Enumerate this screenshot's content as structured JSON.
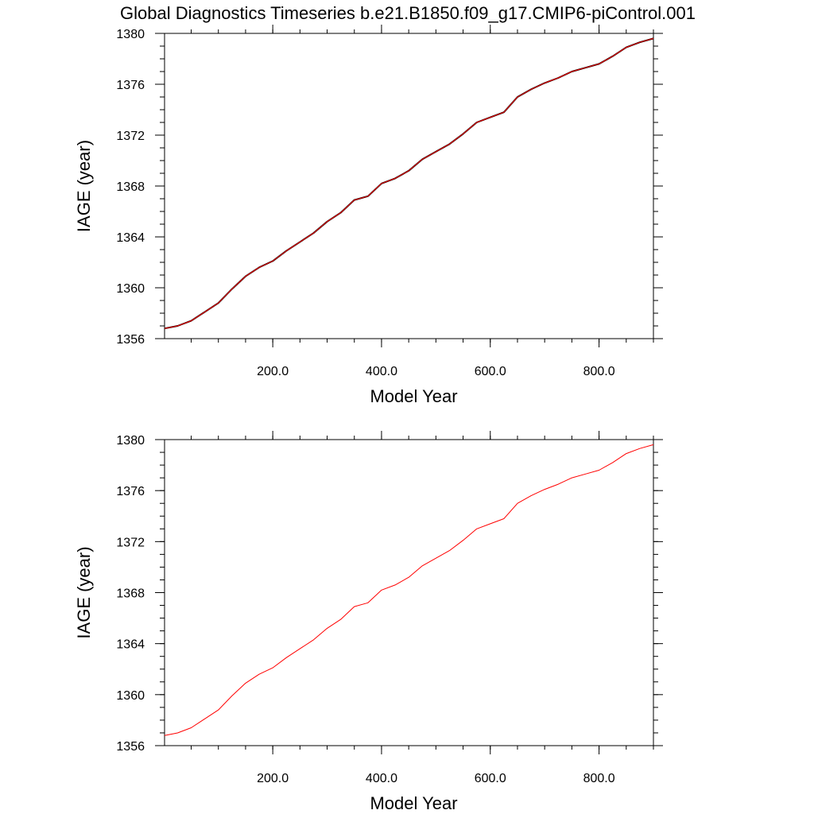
{
  "title": "Global Diagnostics Timeseries b.e21.B1850.f09_g17.CMIP6-piControl.001",
  "chart_data": [
    {
      "type": "line",
      "xlabel": "Model Year",
      "ylabel": "IAGE (year)",
      "xlim": [
        1,
        900
      ],
      "ylim": [
        1356,
        1380
      ],
      "x_ticks": [
        200,
        400,
        600,
        800
      ],
      "x_tick_labels": [
        "200.0",
        "400.0",
        "600.0",
        "800.0"
      ],
      "y_ticks": [
        1356,
        1360,
        1364,
        1368,
        1372,
        1376,
        1380
      ],
      "y_tick_labels": [
        "1356",
        "1360",
        "1364",
        "1368",
        "1372",
        "1376",
        "1380"
      ],
      "grid": false,
      "series": [
        {
          "color": "#000000",
          "x": [
            1,
            25,
            50,
            75,
            100,
            125,
            150,
            175,
            200,
            225,
            250,
            275,
            300,
            325,
            350,
            375,
            400,
            425,
            450,
            475,
            500,
            525,
            550,
            575,
            600,
            625,
            650,
            675,
            700,
            725,
            750,
            775,
            800,
            825,
            850,
            875,
            900
          ],
          "values": [
            1356.8,
            1357.0,
            1357.4,
            1358.1,
            1358.8,
            1359.9,
            1360.9,
            1361.6,
            1362.1,
            1362.9,
            1363.6,
            1364.3,
            1365.2,
            1365.9,
            1366.9,
            1367.2,
            1368.2,
            1368.6,
            1369.2,
            1370.1,
            1370.7,
            1371.3,
            1372.1,
            1373.0,
            1373.4,
            1373.8,
            1375.0,
            1375.6,
            1376.1,
            1376.5,
            1377.0,
            1377.3,
            1377.6,
            1378.2,
            1378.9,
            1379.3,
            1379.6
          ]
        },
        {
          "color": "#ff0000",
          "x": [
            1,
            25,
            50,
            75,
            100,
            125,
            150,
            175,
            200,
            225,
            250,
            275,
            300,
            325,
            350,
            375,
            400,
            425,
            450,
            475,
            500,
            525,
            550,
            575,
            600,
            625,
            650,
            675,
            700,
            725,
            750,
            775,
            800,
            825,
            850,
            875,
            900
          ],
          "values": [
            1356.8,
            1357.0,
            1357.4,
            1358.1,
            1358.8,
            1359.9,
            1360.9,
            1361.6,
            1362.1,
            1362.9,
            1363.6,
            1364.3,
            1365.2,
            1365.9,
            1366.9,
            1367.2,
            1368.2,
            1368.6,
            1369.2,
            1370.1,
            1370.7,
            1371.3,
            1372.1,
            1373.0,
            1373.4,
            1373.8,
            1375.0,
            1375.6,
            1376.1,
            1376.5,
            1377.0,
            1377.3,
            1377.6,
            1378.2,
            1378.9,
            1379.3,
            1379.6
          ]
        }
      ]
    },
    {
      "type": "line",
      "xlabel": "Model Year",
      "ylabel": "IAGE (year)",
      "xlim": [
        1,
        900
      ],
      "ylim": [
        1356,
        1380
      ],
      "x_ticks": [
        200,
        400,
        600,
        800
      ],
      "x_tick_labels": [
        "200.0",
        "400.0",
        "600.0",
        "800.0"
      ],
      "y_ticks": [
        1356,
        1360,
        1364,
        1368,
        1372,
        1376,
        1380
      ],
      "y_tick_labels": [
        "1356",
        "1360",
        "1364",
        "1368",
        "1372",
        "1376",
        "1380"
      ],
      "grid": false,
      "series": [
        {
          "color": "#ff0000",
          "x": [
            1,
            25,
            50,
            75,
            100,
            125,
            150,
            175,
            200,
            225,
            250,
            275,
            300,
            325,
            350,
            375,
            400,
            425,
            450,
            475,
            500,
            525,
            550,
            575,
            600,
            625,
            650,
            675,
            700,
            725,
            750,
            775,
            800,
            825,
            850,
            875,
            900
          ],
          "values": [
            1356.8,
            1357.0,
            1357.4,
            1358.1,
            1358.8,
            1359.9,
            1360.9,
            1361.6,
            1362.1,
            1362.9,
            1363.6,
            1364.3,
            1365.2,
            1365.9,
            1366.9,
            1367.2,
            1368.2,
            1368.6,
            1369.2,
            1370.1,
            1370.7,
            1371.3,
            1372.1,
            1373.0,
            1373.4,
            1373.8,
            1375.0,
            1375.6,
            1376.1,
            1376.5,
            1377.0,
            1377.3,
            1377.6,
            1378.2,
            1378.9,
            1379.3,
            1379.6
          ]
        }
      ]
    }
  ]
}
